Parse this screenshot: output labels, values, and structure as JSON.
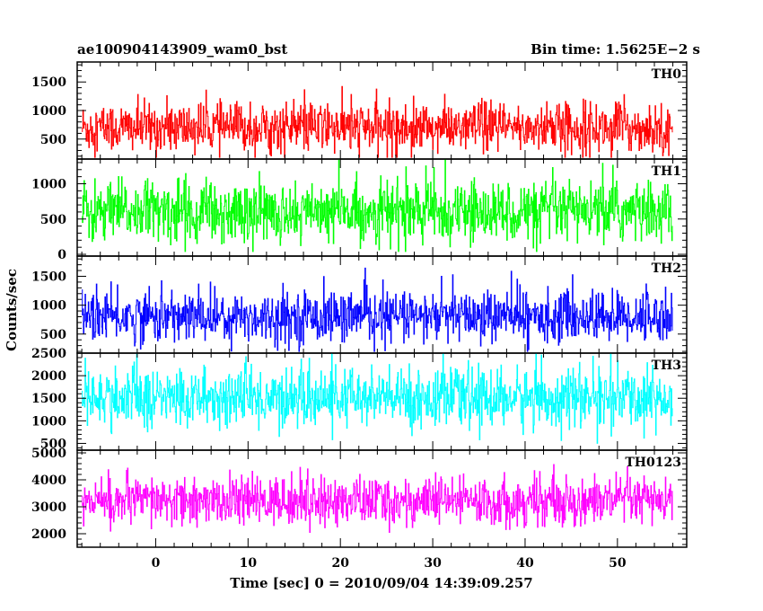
{
  "chart_data": {
    "type": "line",
    "style": "histogram",
    "title_left": "ae100904143909_wam0_bst",
    "title_right": "Bin time: 1.5625E−2 s",
    "xlabel": "Time [sec] 0 = 2010/09/04 14:39:09.257",
    "ylabel": "Counts/sec",
    "xlim": [
      -8.5,
      57.5
    ],
    "x_data_range": [
      -8,
      56
    ],
    "xticks": [
      0,
      10,
      20,
      30,
      40,
      50
    ],
    "xtick_labels": [
      "0",
      "10",
      "20",
      "30",
      "40",
      "50"
    ],
    "grid": false,
    "panels": [
      {
        "name": "TH0",
        "color": "#ff0000",
        "ylim": [
          150,
          1850
        ],
        "yticks": [
          500,
          1000,
          1500
        ],
        "ytick_labels": [
          "500",
          "1000",
          "1500"
        ],
        "mean": 700,
        "spread": 220,
        "min": 180,
        "max": 1850
      },
      {
        "name": "TH1",
        "color": "#00ff00",
        "ylim": [
          -25,
          1350
        ],
        "yticks": [
          0,
          500,
          1000
        ],
        "ytick_labels": [
          "0",
          "500",
          "1000"
        ],
        "mean": 600,
        "spread": 220,
        "min": 40,
        "max": 1350
      },
      {
        "name": "TH2",
        "color": "#0000ff",
        "ylim": [
          170,
          1850
        ],
        "yticks": [
          500,
          1000,
          1500
        ],
        "ytick_labels": [
          "500",
          "1000",
          "1500"
        ],
        "mean": 800,
        "spread": 220,
        "min": 200,
        "max": 1850
      },
      {
        "name": "TH3",
        "color": "#00ffff",
        "ylim": [
          350,
          2500
        ],
        "yticks": [
          500,
          1000,
          1500,
          2000,
          2500
        ],
        "ytick_labels": [
          "500",
          "1000",
          "1500",
          "2000",
          "2500"
        ],
        "mean": 1500,
        "spread": 330,
        "min": 380,
        "max": 2500
      },
      {
        "name": "TH0123",
        "color": "#ff00ff",
        "ylim": [
          1500,
          5100
        ],
        "yticks": [
          2000,
          3000,
          4000,
          5000
        ],
        "ytick_labels": [
          "2000",
          "3000",
          "4000",
          "5000"
        ],
        "mean": 3200,
        "spread": 450,
        "min": 1500,
        "max": 5100
      }
    ]
  }
}
